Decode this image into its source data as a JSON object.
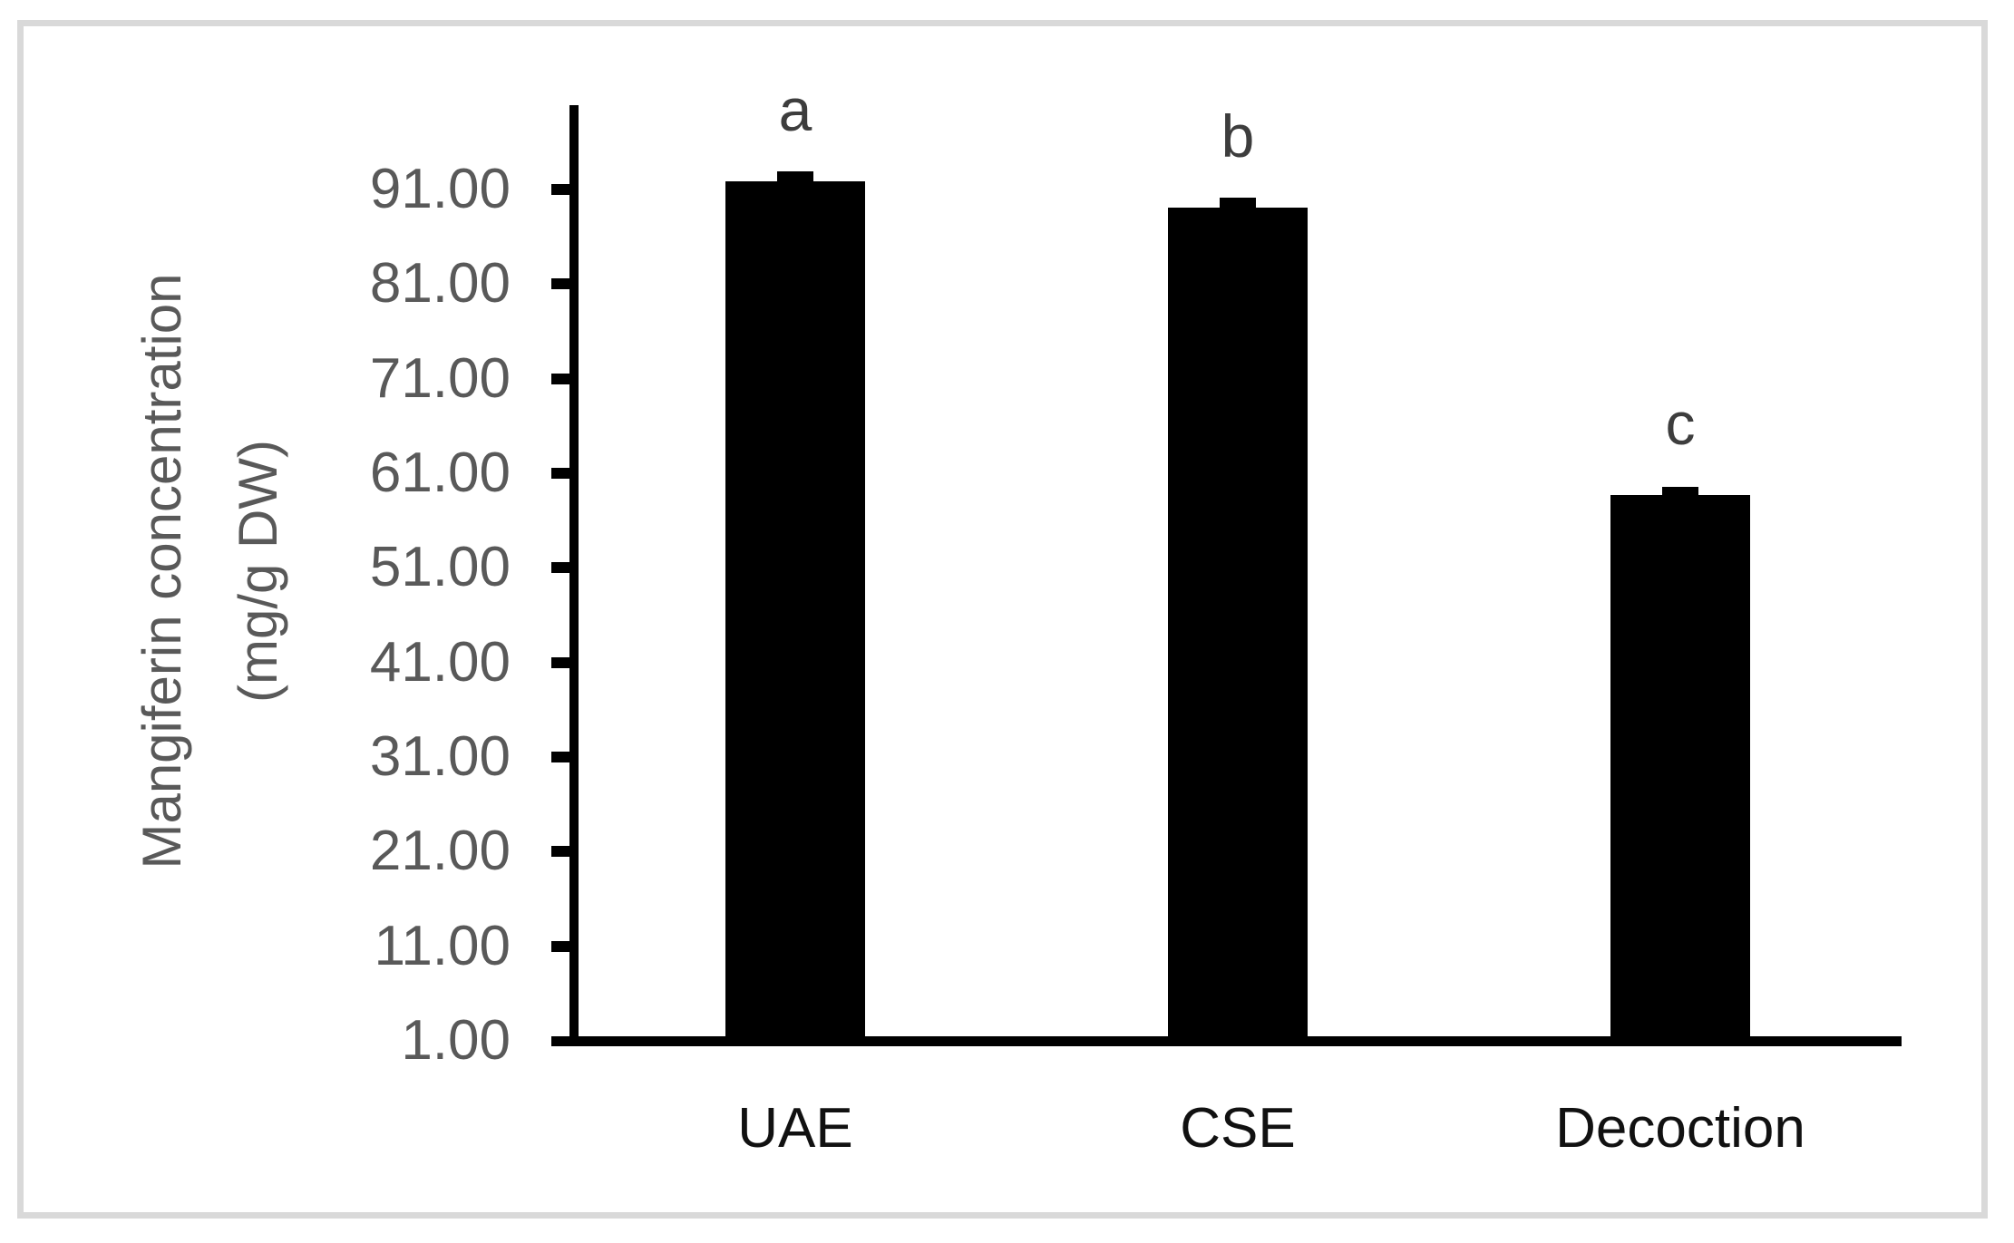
{
  "chart_data": {
    "type": "bar",
    "title": "",
    "categories": [
      "UAE",
      "CSE",
      "Decoction"
    ],
    "values": [
      91.9,
      89.1,
      58.7
    ],
    "errors_plus": [
      1.0,
      1.0,
      0.9
    ],
    "significance_letters": [
      "a",
      "b",
      "c"
    ],
    "xlabel": "",
    "ylabel": "Mangiferin concentration (mg/g DW)",
    "ylabel_lines": [
      "Mangiferin concentration",
      "(mg/g DW)"
    ],
    "y_tick_labels": [
      "1.00",
      "11.00",
      "21.00",
      "31.00",
      "41.00",
      "51.00",
      "61.00",
      "71.00",
      "81.00",
      "91.00"
    ],
    "y_tick_values": [
      1,
      11,
      21,
      31,
      41,
      51,
      61,
      71,
      81,
      91
    ],
    "ylim": [
      1,
      100
    ],
    "grid": false,
    "legend": null,
    "colors": {
      "bar": "#000000",
      "axis": "#000000",
      "tick_label": "#595959",
      "category_label": "#111111",
      "letter": "#3d3d3d",
      "frame_border": "#d9d9d9",
      "background": "#ffffff"
    }
  }
}
